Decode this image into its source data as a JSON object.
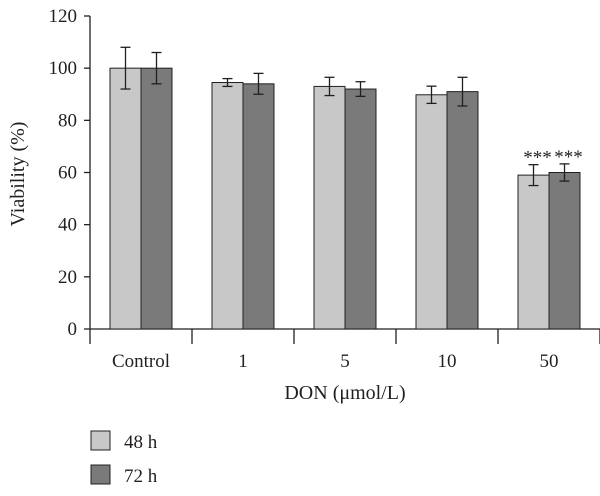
{
  "chart_data": {
    "type": "bar",
    "title": "",
    "xlabel": "DON (μmol/L)",
    "ylabel": "Viability (%)",
    "ylim": [
      0,
      120
    ],
    "yticks": [
      0,
      20,
      40,
      60,
      80,
      100,
      120
    ],
    "categories": [
      "Control",
      "1",
      "5",
      "10",
      "50"
    ],
    "series": [
      {
        "name": "48 h",
        "color": "#c8c8c8",
        "values": [
          100,
          94.5,
          93,
          89.8,
          59
        ],
        "errors": [
          8,
          1.5,
          3.5,
          3.3,
          4
        ]
      },
      {
        "name": "72 h",
        "color": "#7a7a7a",
        "values": [
          100,
          94,
          92,
          91,
          60
        ],
        "errors": [
          6,
          4,
          2.8,
          5.5,
          3.3
        ]
      }
    ],
    "annotations": [
      {
        "category": "50",
        "series": "48 h",
        "text": "***"
      },
      {
        "category": "50",
        "series": "72 h",
        "text": "***"
      }
    ],
    "legend_position": "bottom-left",
    "grid": false
  }
}
